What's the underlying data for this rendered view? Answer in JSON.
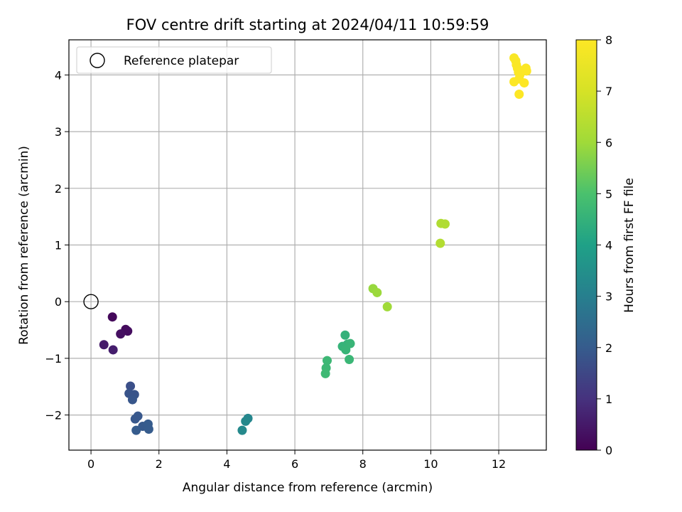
{
  "chart_data": {
    "type": "scatter",
    "title": "FOV centre drift starting at 2024/04/11 10:59:59",
    "xlabel": "Angular distance from reference (arcmin)",
    "ylabel": "Rotation from reference (arcmin)",
    "xlim": [
      -0.65,
      13.4
    ],
    "ylim": [
      -2.62,
      4.62
    ],
    "xticks": [
      0,
      2,
      4,
      6,
      8,
      10,
      12
    ],
    "yticks": [
      -2,
      -1,
      0,
      1,
      2,
      3,
      4
    ],
    "xtick_labels": [
      "0",
      "2",
      "4",
      "6",
      "8",
      "10",
      "12"
    ],
    "ytick_labels": [
      "−2",
      "−1",
      "0",
      "1",
      "2",
      "3",
      "4"
    ],
    "grid": true,
    "legend": {
      "placement": "top-left",
      "entries": [
        "Reference platepar"
      ]
    },
    "reference_point": {
      "x": 0,
      "y": 0,
      "label": "Reference platepar"
    },
    "colorbar": {
      "label": "Hours from first FF file",
      "colormap": "viridis",
      "range": [
        0,
        8
      ],
      "ticks": [
        0,
        1,
        2,
        3,
        4,
        5,
        6,
        7,
        8
      ]
    },
    "points": [
      {
        "x": 0.63,
        "y": -0.27,
        "c": 0.15
      },
      {
        "x": 1.02,
        "y": -0.49,
        "c": 0.2
      },
      {
        "x": 1.08,
        "y": -0.52,
        "c": 0.25
      },
      {
        "x": 0.87,
        "y": -0.57,
        "c": 0.3
      },
      {
        "x": 0.38,
        "y": -0.76,
        "c": 0.5
      },
      {
        "x": 0.65,
        "y": -0.85,
        "c": 0.6
      },
      {
        "x": 1.16,
        "y": -1.49,
        "c": 1.7
      },
      {
        "x": 1.12,
        "y": -1.62,
        "c": 1.8
      },
      {
        "x": 1.28,
        "y": -1.64,
        "c": 1.8
      },
      {
        "x": 1.22,
        "y": -1.73,
        "c": 1.85
      },
      {
        "x": 1.38,
        "y": -2.02,
        "c": 1.9
      },
      {
        "x": 1.3,
        "y": -2.07,
        "c": 1.9
      },
      {
        "x": 1.52,
        "y": -2.2,
        "c": 1.95
      },
      {
        "x": 1.68,
        "y": -2.16,
        "c": 2.0
      },
      {
        "x": 1.7,
        "y": -2.25,
        "c": 2.0
      },
      {
        "x": 1.33,
        "y": -2.27,
        "c": 2.0
      },
      {
        "x": 4.62,
        "y": -2.06,
        "c": 3.2
      },
      {
        "x": 4.55,
        "y": -2.11,
        "c": 3.25
      },
      {
        "x": 4.45,
        "y": -2.27,
        "c": 3.3
      },
      {
        "x": 7.48,
        "y": -0.59,
        "c": 4.5
      },
      {
        "x": 7.4,
        "y": -0.79,
        "c": 4.55
      },
      {
        "x": 7.55,
        "y": -0.75,
        "c": 4.55
      },
      {
        "x": 7.63,
        "y": -0.74,
        "c": 4.6
      },
      {
        "x": 7.5,
        "y": -0.85,
        "c": 4.6
      },
      {
        "x": 7.6,
        "y": -1.02,
        "c": 4.65
      },
      {
        "x": 6.95,
        "y": -1.04,
        "c": 4.7
      },
      {
        "x": 6.92,
        "y": -1.17,
        "c": 4.7
      },
      {
        "x": 6.9,
        "y": -1.27,
        "c": 4.75
      },
      {
        "x": 8.3,
        "y": 0.23,
        "c": 5.9
      },
      {
        "x": 8.42,
        "y": 0.16,
        "c": 5.95
      },
      {
        "x": 8.72,
        "y": -0.09,
        "c": 6.0
      },
      {
        "x": 10.3,
        "y": 1.38,
        "c": 6.3
      },
      {
        "x": 10.42,
        "y": 1.37,
        "c": 6.3
      },
      {
        "x": 10.28,
        "y": 1.03,
        "c": 6.35
      },
      {
        "x": 12.45,
        "y": 4.3,
        "c": 7.9
      },
      {
        "x": 12.5,
        "y": 4.25,
        "c": 7.9
      },
      {
        "x": 12.52,
        "y": 4.18,
        "c": 7.92
      },
      {
        "x": 12.55,
        "y": 4.12,
        "c": 7.93
      },
      {
        "x": 12.58,
        "y": 4.05,
        "c": 7.95
      },
      {
        "x": 12.62,
        "y": 4.0,
        "c": 7.95
      },
      {
        "x": 12.8,
        "y": 4.12,
        "c": 7.95
      },
      {
        "x": 12.82,
        "y": 4.07,
        "c": 7.97
      },
      {
        "x": 12.6,
        "y": 3.93,
        "c": 7.98
      },
      {
        "x": 12.45,
        "y": 3.88,
        "c": 7.98
      },
      {
        "x": 12.75,
        "y": 3.86,
        "c": 8.0
      },
      {
        "x": 12.6,
        "y": 3.66,
        "c": 8.0
      }
    ]
  }
}
